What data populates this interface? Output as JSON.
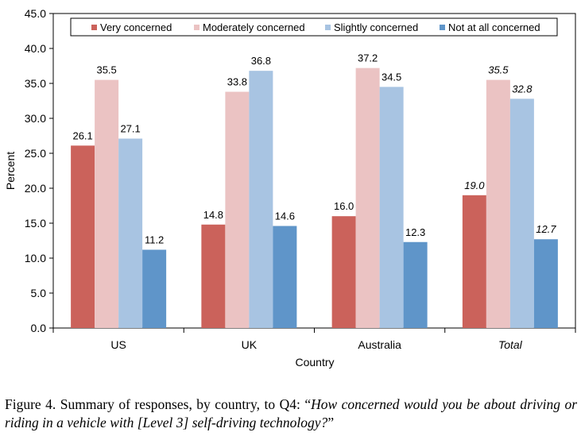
{
  "chart_data": {
    "type": "bar",
    "title": "",
    "xlabel": "Country",
    "ylabel": "Percent",
    "ylim": [
      0,
      45
    ],
    "yticks": [
      "0.0",
      "5.0",
      "10.0",
      "15.0",
      "20.0",
      "25.0",
      "30.0",
      "35.0",
      "40.0",
      "45.0"
    ],
    "categories": [
      "US",
      "UK",
      "Australia",
      "Total"
    ],
    "italic_categories": [
      "Total"
    ],
    "legend_position": "top",
    "grid": false,
    "series": [
      {
        "name": "Very concerned",
        "color": "#CB625B",
        "values": [
          26.1,
          14.8,
          16.0,
          19.0
        ],
        "labels": [
          "26.1",
          "14.8",
          "16.0",
          "19.0"
        ]
      },
      {
        "name": "Moderately concerned",
        "color": "#EBC3C3",
        "values": [
          35.5,
          33.8,
          37.2,
          35.5
        ],
        "labels": [
          "35.5",
          "33.8",
          "37.2",
          "35.5"
        ]
      },
      {
        "name": "Slightly concerned",
        "color": "#A8C4E2",
        "values": [
          27.1,
          36.8,
          34.5,
          32.8
        ],
        "labels": [
          "27.1",
          "36.8",
          "34.5",
          "32.8"
        ]
      },
      {
        "name": "Not at all concerned",
        "color": "#5F95C9",
        "values": [
          11.2,
          14.6,
          12.3,
          12.7
        ],
        "labels": [
          "11.2",
          "14.6",
          "12.3",
          "12.7"
        ]
      }
    ]
  },
  "caption": {
    "prefix": "Figure 4.  Summary of responses, by country, to Q4: “",
    "question": "How concerned would you be about driving or riding in a vehicle with [Level 3] self-driving technology?",
    "suffix": "”"
  }
}
